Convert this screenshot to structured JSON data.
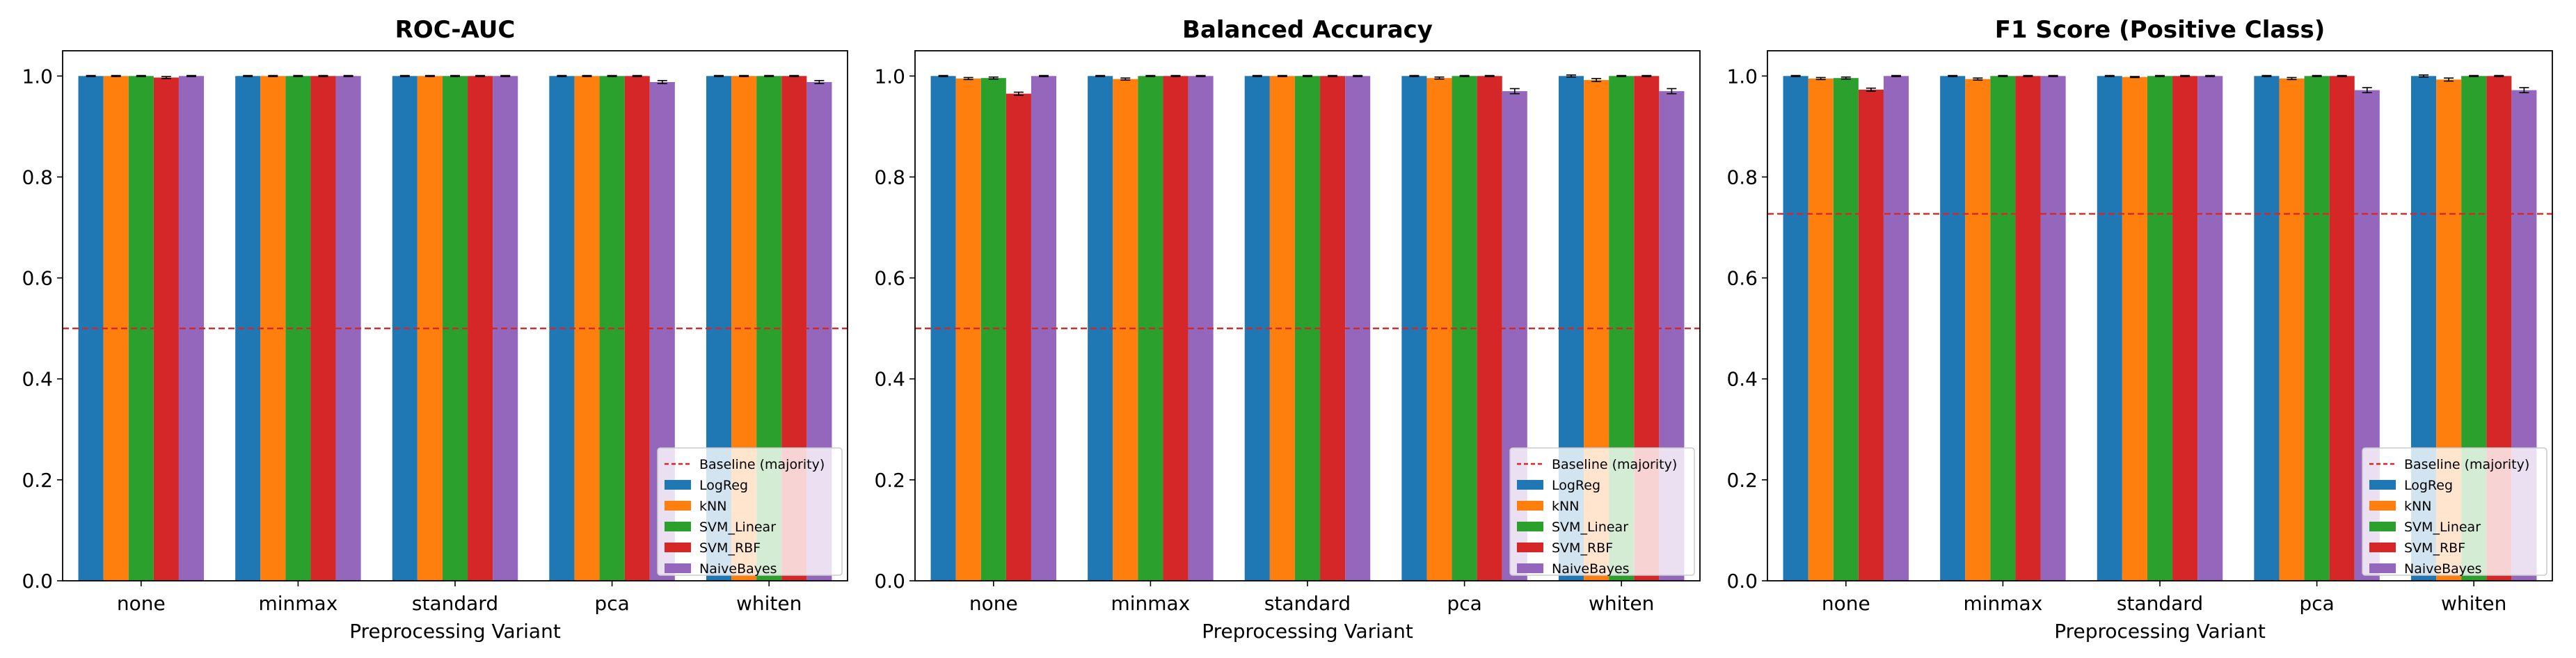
{
  "figure": {
    "background": "#ffffff"
  },
  "chart_data": [
    {
      "type": "bar",
      "title": "ROC-AUC",
      "xlabel": "Preprocessing Variant",
      "ylabel": "",
      "categories": [
        "none",
        "minmax",
        "standard",
        "pca",
        "whiten"
      ],
      "ylim": [
        0,
        1.05
      ],
      "yticks": [
        "0.0",
        "0.2",
        "0.4",
        "0.6",
        "0.8",
        "1.0"
      ],
      "baseline": {
        "name": "Baseline (majority)",
        "value": 0.5,
        "color": "#d62728",
        "style": "dashed"
      },
      "legend_position": "lower right",
      "series": [
        {
          "name": "LogReg",
          "color": "#1f77b4",
          "values": [
            1.0,
            1.0,
            1.0,
            1.0,
            1.0
          ],
          "errors": [
            0.001,
            0.001,
            0.001,
            0.001,
            0.001
          ]
        },
        {
          "name": "kNN",
          "color": "#ff7f0e",
          "values": [
            1.0,
            1.0,
            1.0,
            1.0,
            1.0
          ],
          "errors": [
            0.001,
            0.001,
            0.001,
            0.001,
            0.001
          ]
        },
        {
          "name": "SVM_Linear",
          "color": "#2ca02c",
          "values": [
            1.0,
            1.0,
            1.0,
            1.0,
            1.0
          ],
          "errors": [
            0.001,
            0.001,
            0.001,
            0.001,
            0.001
          ]
        },
        {
          "name": "SVM_RBF",
          "color": "#d62728",
          "values": [
            0.997,
            1.0,
            1.0,
            1.0,
            1.0
          ],
          "errors": [
            0.002,
            0.001,
            0.001,
            0.001,
            0.001
          ]
        },
        {
          "name": "NaiveBayes",
          "color": "#9467bd",
          "values": [
            1.0,
            1.0,
            1.0,
            0.988,
            0.988
          ],
          "errors": [
            0.001,
            0.001,
            0.001,
            0.003,
            0.003
          ]
        }
      ]
    },
    {
      "type": "bar",
      "title": "Balanced Accuracy",
      "xlabel": "Preprocessing Variant",
      "ylabel": "",
      "categories": [
        "none",
        "minmax",
        "standard",
        "pca",
        "whiten"
      ],
      "ylim": [
        0,
        1.05
      ],
      "yticks": [
        "0.0",
        "0.2",
        "0.4",
        "0.6",
        "0.8",
        "1.0"
      ],
      "baseline": {
        "name": "Baseline (majority)",
        "value": 0.5,
        "color": "#d62728",
        "style": "dashed"
      },
      "legend_position": "lower right",
      "series": [
        {
          "name": "LogReg",
          "color": "#1f77b4",
          "values": [
            1.0,
            1.0,
            1.0,
            1.0,
            1.0
          ],
          "errors": [
            0.001,
            0.001,
            0.001,
            0.001,
            0.002
          ]
        },
        {
          "name": "kNN",
          "color": "#ff7f0e",
          "values": [
            0.995,
            0.994,
            1.0,
            0.996,
            0.992
          ],
          "errors": [
            0.002,
            0.002,
            0.001,
            0.002,
            0.003
          ]
        },
        {
          "name": "SVM_Linear",
          "color": "#2ca02c",
          "values": [
            0.996,
            1.0,
            1.0,
            1.0,
            1.0
          ],
          "errors": [
            0.002,
            0.001,
            0.001,
            0.001,
            0.001
          ]
        },
        {
          "name": "SVM_RBF",
          "color": "#d62728",
          "values": [
            0.965,
            1.0,
            1.0,
            1.0,
            1.0
          ],
          "errors": [
            0.003,
            0.001,
            0.001,
            0.001,
            0.001
          ]
        },
        {
          "name": "NaiveBayes",
          "color": "#9467bd",
          "values": [
            1.0,
            1.0,
            1.0,
            0.97,
            0.97
          ],
          "errors": [
            0.001,
            0.001,
            0.001,
            0.005,
            0.005
          ]
        }
      ]
    },
    {
      "type": "bar",
      "title": "F1 Score (Positive Class)",
      "xlabel": "Preprocessing Variant",
      "ylabel": "",
      "categories": [
        "none",
        "minmax",
        "standard",
        "pca",
        "whiten"
      ],
      "ylim": [
        0,
        1.05
      ],
      "yticks": [
        "0.0",
        "0.2",
        "0.4",
        "0.6",
        "0.8",
        "1.0"
      ],
      "baseline": {
        "name": "Baseline (majority)",
        "value": 0.727,
        "color": "#d62728",
        "style": "dashed"
      },
      "legend_position": "lower right",
      "series": [
        {
          "name": "LogReg",
          "color": "#1f77b4",
          "values": [
            1.0,
            1.0,
            1.0,
            1.0,
            1.0
          ],
          "errors": [
            0.001,
            0.001,
            0.001,
            0.001,
            0.002
          ]
        },
        {
          "name": "kNN",
          "color": "#ff7f0e",
          "values": [
            0.995,
            0.994,
            0.998,
            0.995,
            0.993
          ],
          "errors": [
            0.002,
            0.002,
            0.001,
            0.002,
            0.003
          ]
        },
        {
          "name": "SVM_Linear",
          "color": "#2ca02c",
          "values": [
            0.996,
            1.0,
            1.0,
            1.0,
            1.0
          ],
          "errors": [
            0.002,
            0.001,
            0.001,
            0.001,
            0.001
          ]
        },
        {
          "name": "SVM_RBF",
          "color": "#d62728",
          "values": [
            0.973,
            1.0,
            1.0,
            1.0,
            1.0
          ],
          "errors": [
            0.003,
            0.001,
            0.001,
            0.001,
            0.001
          ]
        },
        {
          "name": "NaiveBayes",
          "color": "#9467bd",
          "values": [
            1.0,
            1.0,
            1.0,
            0.972,
            0.972
          ],
          "errors": [
            0.001,
            0.001,
            0.001,
            0.005,
            0.005
          ]
        }
      ]
    }
  ]
}
